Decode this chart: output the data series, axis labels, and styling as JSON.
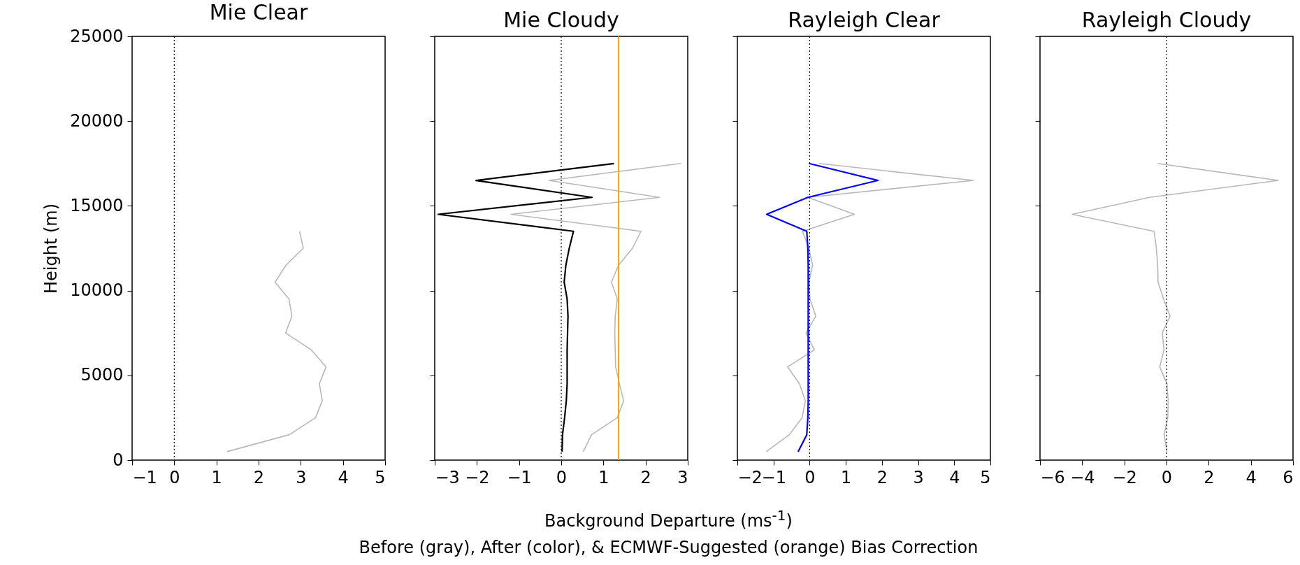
{
  "chart_data": [
    {
      "type": "line",
      "title": "Mie Clear",
      "ylabel": "Height (m)",
      "xlim": [
        -1,
        5
      ],
      "xticks": [
        -1,
        0,
        1,
        2,
        3,
        4,
        5
      ],
      "ylim": [
        0,
        25000
      ],
      "yticks": [
        0,
        5000,
        10000,
        15000,
        20000,
        25000
      ],
      "grid": false,
      "ref_lines": [
        {
          "axis": "x",
          "value": 0,
          "color": "#000000",
          "line_style": "dotted"
        }
      ],
      "series": [
        {
          "color": "#b8b8b8",
          "x": [
            1.25,
            2.73,
            3.35,
            3.51,
            3.44,
            3.6,
            3.25,
            2.64,
            2.79,
            2.72,
            2.39,
            2.65,
            3.06,
            2.97
          ],
          "values": [
            500,
            1500,
            2500,
            3500,
            4500,
            5500,
            6500,
            7500,
            8500,
            9500,
            10500,
            11500,
            12500,
            13500
          ]
        }
      ]
    },
    {
      "type": "line",
      "title": "Mie Cloudy",
      "xlabel": "Background Departure (ms$^{-1}$)",
      "annotations": [
        "Before (gray), After (color), & ECMWF-Suggested (orange) Bias Correction"
      ],
      "xlim": [
        -3,
        3
      ],
      "xticks": [
        -3,
        -2,
        -1,
        0,
        1,
        2,
        3
      ],
      "ylim": [
        0,
        25000
      ],
      "yticks": [
        0,
        5000,
        10000,
        15000,
        20000,
        25000
      ],
      "tick_labels": "x",
      "grid": false,
      "ref_lines": [
        {
          "axis": "x",
          "value": 0,
          "color": "#000000",
          "line_style": "dotted"
        },
        {
          "axis": "x",
          "value": 1.36,
          "color": "#ffa500",
          "line_style": "solid"
        }
      ],
      "series": [
        {
          "color": "#b8b8b8",
          "x": [
            0.52,
            0.72,
            1.33,
            1.48,
            1.38,
            1.29,
            1.28,
            1.27,
            1.28,
            1.33,
            1.19,
            1.36,
            1.69,
            1.89,
            -1.19,
            2.33,
            -0.29,
            2.84
          ],
          "values": [
            500,
            1500,
            2500,
            3500,
            4500,
            5500,
            6500,
            7500,
            8500,
            9500,
            10500,
            11500,
            12500,
            13500,
            14500,
            15500,
            16500,
            17500
          ]
        },
        {
          "color": "#000000",
          "x": [
            0.02,
            0.03,
            0.08,
            0.12,
            0.14,
            0.14,
            0.14,
            0.15,
            0.16,
            0.14,
            0.07,
            0.11,
            0.19,
            0.29,
            -2.92,
            0.73,
            -2.02,
            1.25
          ],
          "values": [
            500,
            1500,
            2500,
            3500,
            4500,
            5500,
            6500,
            7500,
            8500,
            9500,
            10500,
            11500,
            12500,
            13500,
            14500,
            15500,
            16500,
            17500
          ]
        }
      ]
    },
    {
      "type": "line",
      "title": "Rayleigh Clear",
      "xlim": [
        -2,
        5
      ],
      "xticks": [
        -2,
        -1,
        0,
        1,
        2,
        3,
        4,
        5
      ],
      "ylim": [
        0,
        25000
      ],
      "yticks": [
        0,
        5000,
        10000,
        15000,
        20000,
        25000
      ],
      "tick_labels": "x",
      "grid": false,
      "ref_lines": [
        {
          "axis": "x",
          "value": 0,
          "color": "#000000",
          "line_style": "dotted"
        }
      ],
      "series": [
        {
          "color": "#b8b8b8",
          "x": [
            -1.2,
            -0.56,
            -0.21,
            -0.12,
            -0.28,
            -0.61,
            0.13,
            -0.1,
            0.17,
            0.01,
            -0.02,
            0.08,
            -0.02,
            -0.2,
            1.24,
            -0.05,
            4.53,
            0.26
          ],
          "values": [
            500,
            1500,
            2500,
            3500,
            4500,
            5500,
            6500,
            7500,
            8500,
            9500,
            10500,
            11500,
            12500,
            13500,
            14500,
            15500,
            16500,
            17500
          ]
        },
        {
          "color": "#0000ff",
          "x": [
            -0.32,
            -0.08,
            -0.05,
            -0.04,
            -0.04,
            -0.04,
            -0.04,
            -0.04,
            -0.04,
            -0.04,
            -0.04,
            -0.04,
            -0.05,
            -0.08,
            -1.19,
            -0.05,
            1.89,
            -0.02
          ],
          "values": [
            500,
            1500,
            2500,
            3500,
            4500,
            5500,
            6500,
            7500,
            8500,
            9500,
            10500,
            11500,
            12500,
            13500,
            14500,
            15500,
            16500,
            17500
          ]
        }
      ]
    },
    {
      "type": "line",
      "title": "Rayleigh Cloudy",
      "xlim": [
        -6,
        6
      ],
      "xticks": [
        -6,
        -4,
        -2,
        0,
        2,
        4,
        6
      ],
      "ylim": [
        0,
        25000
      ],
      "yticks": [
        0,
        5000,
        10000,
        15000,
        20000,
        25000
      ],
      "tick_labels": "x",
      "grid": false,
      "ref_lines": [
        {
          "axis": "x",
          "value": 0,
          "color": "#000000",
          "line_style": "dotted"
        }
      ],
      "series": [
        {
          "color": "#b8b8b8",
          "x": [
            0.02,
            -0.11,
            0.06,
            0.08,
            0.02,
            -0.32,
            -0.12,
            -0.2,
            0.17,
            -0.14,
            -0.4,
            -0.42,
            -0.48,
            -0.59,
            -4.48,
            -0.81,
            5.3,
            -0.42
          ],
          "values": [
            500,
            1500,
            2500,
            3500,
            4500,
            5500,
            6500,
            7500,
            8500,
            9500,
            10500,
            11500,
            12500,
            13500,
            14500,
            15500,
            16500,
            17500
          ]
        }
      ]
    }
  ]
}
